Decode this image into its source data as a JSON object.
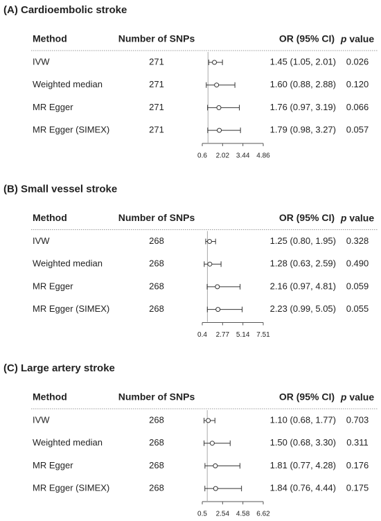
{
  "chart_data": [
    {
      "type": "forest",
      "title": "(A) Cardioembolic stroke",
      "headers": {
        "method": "Method",
        "snps": "Number of SNPs",
        "or": "OR (95% CI)",
        "p_italic": "p",
        "p_rest": "value"
      },
      "categories": [
        "IVW",
        "Weighted median",
        "MR Egger",
        "MR Egger (SIMEX)"
      ],
      "snps": [
        271,
        271,
        271,
        271
      ],
      "values": [
        1.45,
        1.6,
        1.76,
        1.79
      ],
      "ci_low": [
        1.05,
        0.88,
        0.97,
        0.98
      ],
      "ci_high": [
        2.01,
        2.88,
        3.19,
        3.27
      ],
      "value_labels": [
        "1.45 (1.05, 2.01)",
        "1.60 (0.88, 2.88)",
        "1.76 (0.97, 3.19)",
        "1.79 (0.98, 3.27)"
      ],
      "p_values": [
        "0.026",
        "0.120",
        "0.066",
        "0.057"
      ],
      "reference_line": 1,
      "xlim": [
        0.6,
        4.86
      ],
      "xticks": [
        0.6,
        2.02,
        3.44,
        4.86
      ]
    },
    {
      "type": "forest",
      "title": "(B) Small vessel stroke",
      "headers": {
        "method": "Method",
        "snps": "Number of SNPs",
        "or": "OR (95% CI)",
        "p_italic": "p",
        "p_rest": "value"
      },
      "categories": [
        "IVW",
        "Weighted median",
        "MR Egger",
        "MR Egger (SIMEX)"
      ],
      "snps": [
        268,
        268,
        268,
        268
      ],
      "values": [
        1.25,
        1.28,
        2.16,
        2.23
      ],
      "ci_low": [
        0.8,
        0.63,
        0.97,
        0.99
      ],
      "ci_high": [
        1.95,
        2.59,
        4.81,
        5.05
      ],
      "value_labels": [
        "1.25 (0.80, 1.95)",
        "1.28 (0.63, 2.59)",
        "2.16 (0.97, 4.81)",
        "2.23 (0.99, 5.05)"
      ],
      "p_values": [
        "0.328",
        "0.490",
        "0.059",
        "0.055"
      ],
      "reference_line": 1,
      "xlim": [
        0.4,
        7.51
      ],
      "xticks": [
        0.4,
        2.77,
        5.14,
        7.51
      ]
    },
    {
      "type": "forest",
      "title": "(C) Large artery stroke",
      "headers": {
        "method": "Method",
        "snps": "Number of SNPs",
        "or": "OR (95% CI)",
        "p_italic": "p",
        "p_rest": "value"
      },
      "categories": [
        "IVW",
        "Weighted median",
        "MR Egger",
        "MR Egger (SIMEX)"
      ],
      "snps": [
        268,
        268,
        268,
        268
      ],
      "values": [
        1.1,
        1.5,
        1.81,
        1.84
      ],
      "ci_low": [
        0.68,
        0.68,
        0.77,
        0.76
      ],
      "ci_high": [
        1.77,
        3.3,
        4.28,
        4.44
      ],
      "value_labels": [
        "1.10 (0.68, 1.77)",
        "1.50 (0.68, 3.30)",
        "1.81 (0.77, 4.28)",
        "1.84 (0.76, 4.44)"
      ],
      "p_values": [
        "0.703",
        "0.311",
        "0.176",
        "0.175"
      ],
      "reference_line": 1,
      "xlim": [
        0.5,
        6.62
      ],
      "xticks": [
        0.5,
        2.54,
        4.58,
        6.62
      ]
    }
  ]
}
